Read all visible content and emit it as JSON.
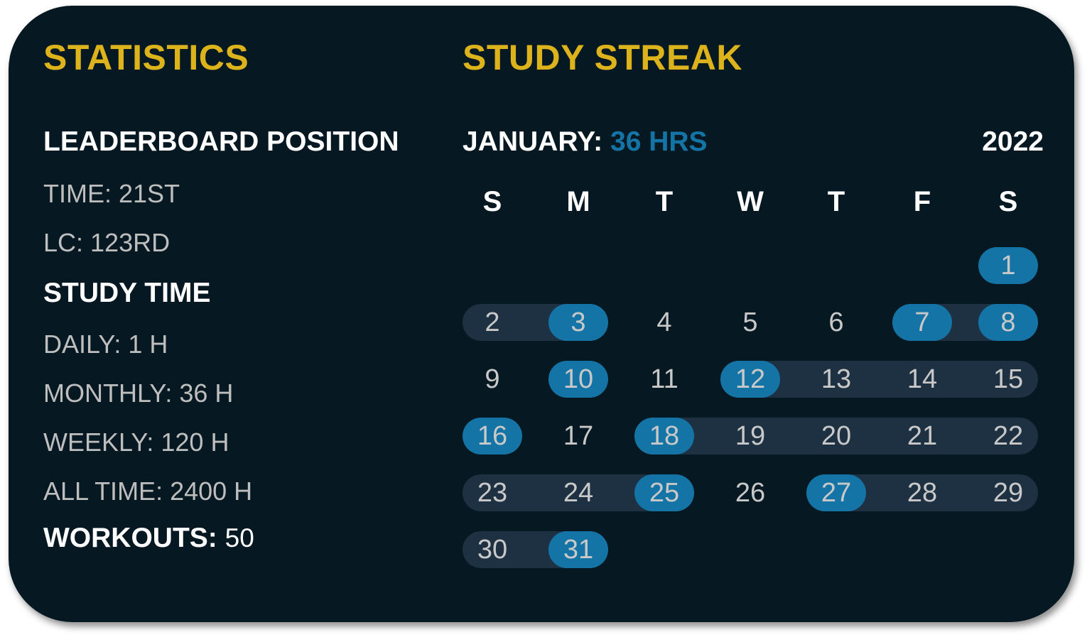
{
  "statistics": {
    "title": "STATISTICS",
    "leaderboard_heading": "LEADERBOARD POSITION",
    "time": "TIME: 21ST",
    "lc": "LC: 123RD",
    "study_time_heading": "STUDY TIME",
    "daily": "DAILY: 1 H",
    "monthly": "MONTHLY: 36 H",
    "weekly": "WEEKLY: 120 H",
    "all_time": "ALL TIME: 2400 H",
    "workouts_label": "WORKOUTS:",
    "workouts_value": "50"
  },
  "streak": {
    "title": "STUDY STREAK",
    "month_label": "JANUARY:",
    "month_hours": "36 HRS",
    "year": "2022",
    "weekdays": [
      "S",
      "M",
      "T",
      "W",
      "T",
      "F",
      "S"
    ],
    "days_in_month": 31,
    "first_weekday_index": 6,
    "highlighted_days": [
      1,
      3,
      7,
      8,
      10,
      12,
      16,
      18,
      25,
      27,
      31
    ],
    "streak_ranges": [
      [
        2,
        3
      ],
      [
        7,
        8
      ],
      [
        12,
        15
      ],
      [
        18,
        22
      ],
      [
        23,
        25
      ],
      [
        27,
        29
      ],
      [
        30,
        31
      ]
    ]
  },
  "colors": {
    "background": "#061822",
    "accent_yellow": "#DDB31C",
    "accent_blue": "#1474A6",
    "streak_strip": "#1D3142"
  }
}
